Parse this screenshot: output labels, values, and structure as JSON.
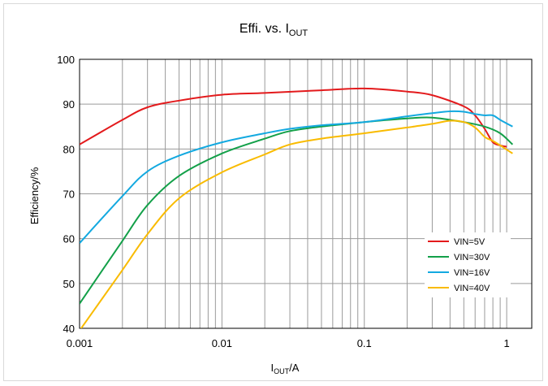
{
  "chart_data": {
    "type": "line",
    "title": {
      "main": "Effi. vs. I",
      "sub": "OUT"
    },
    "xlabel": {
      "main": "I",
      "sub": "OUT",
      "suffix": "/A"
    },
    "ylabel": "Efficiency/%",
    "xscale": "log",
    "xlim": [
      0.001,
      1.5
    ],
    "ylim": [
      40,
      100
    ],
    "xticks": [
      {
        "value": 0.001,
        "label": "0.001"
      },
      {
        "value": 0.01,
        "label": "0.01"
      },
      {
        "value": 0.1,
        "label": "0.1"
      },
      {
        "value": 1,
        "label": "1"
      }
    ],
    "yticks": [
      {
        "value": 40,
        "label": "40"
      },
      {
        "value": 50,
        "label": "50"
      },
      {
        "value": 60,
        "label": "60"
      },
      {
        "value": 70,
        "label": "70"
      },
      {
        "value": 80,
        "label": "80"
      },
      {
        "value": 90,
        "label": "90"
      },
      {
        "value": 100,
        "label": "100"
      }
    ],
    "grid": {
      "x_major_and_minor": true,
      "y_major": true
    },
    "legend_position": "bottom-right",
    "series": [
      {
        "name": "VIN=5V",
        "color": "#e31a1c",
        "x": [
          0.001,
          0.002,
          0.003,
          0.005,
          0.01,
          0.02,
          0.05,
          0.1,
          0.2,
          0.3,
          0.5,
          0.6,
          0.7,
          0.8,
          0.9,
          1.0
        ],
        "y": [
          81,
          86.5,
          89.3,
          90.8,
          92.1,
          92.5,
          93.1,
          93.5,
          92.8,
          92.0,
          89.5,
          87.5,
          84.5,
          81.5,
          80.8,
          80.5
        ]
      },
      {
        "name": "VIN=30V",
        "color": "#13a049",
        "x": [
          0.001,
          0.002,
          0.003,
          0.005,
          0.01,
          0.02,
          0.03,
          0.05,
          0.1,
          0.2,
          0.3,
          0.5,
          0.7,
          0.9,
          1.1
        ],
        "y": [
          45.5,
          59.5,
          67.5,
          74,
          79,
          82.3,
          84,
          85,
          86,
          86.8,
          87,
          86,
          85,
          83.5,
          81
        ]
      },
      {
        "name": "VIN=16V",
        "color": "#13a9e0",
        "x": [
          0.001,
          0.002,
          0.003,
          0.005,
          0.01,
          0.02,
          0.03,
          0.05,
          0.1,
          0.2,
          0.3,
          0.4,
          0.5,
          0.6,
          0.7,
          0.8,
          0.9,
          1.1
        ],
        "y": [
          59,
          69.5,
          75,
          78.5,
          81.5,
          83.5,
          84.5,
          85.3,
          86,
          87.3,
          88,
          88.4,
          88.3,
          87.8,
          87.5,
          87.5,
          86.5,
          85
        ]
      },
      {
        "name": "VIN=40V",
        "color": "#f9bb00",
        "x": [
          0.001,
          0.002,
          0.003,
          0.005,
          0.01,
          0.02,
          0.03,
          0.05,
          0.1,
          0.2,
          0.3,
          0.4,
          0.5,
          0.6,
          0.7,
          0.8,
          0.9,
          1.1
        ],
        "y": [
          39.5,
          53,
          61,
          69,
          74.8,
          78.8,
          81,
          82.3,
          83.5,
          84.8,
          85.6,
          86.3,
          86,
          84.8,
          82.7,
          81.8,
          80.8,
          79
        ]
      }
    ]
  }
}
